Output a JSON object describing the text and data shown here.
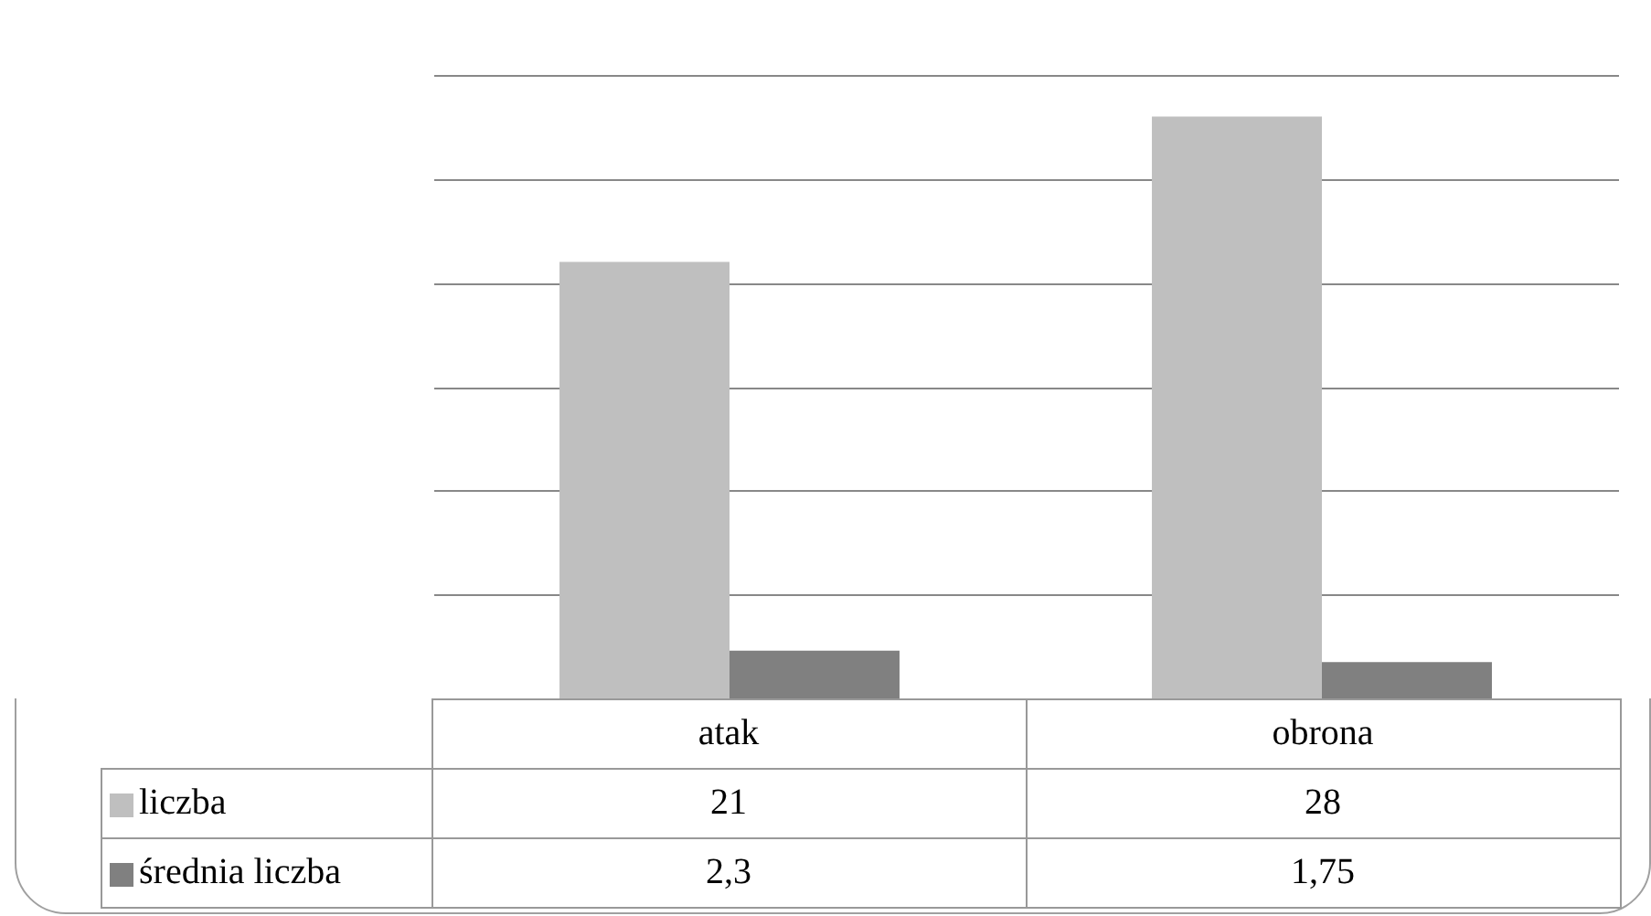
{
  "chart_data": {
    "type": "bar",
    "categories": [
      "atak",
      "obrona"
    ],
    "series": [
      {
        "name": "liczba",
        "color": "#bfbfbf",
        "values": [
          21,
          28
        ],
        "value_labels": [
          "21",
          "28"
        ]
      },
      {
        "name": "średnia liczba",
        "color": "#808080",
        "values": [
          2.3,
          1.75
        ],
        "value_labels": [
          "2,3",
          "1,75"
        ]
      }
    ],
    "ylim": [
      0,
      30
    ],
    "yticks": [
      {
        "value": 0,
        "label": null
      },
      {
        "value": 5,
        "label": null
      },
      {
        "value": 10,
        "label": null
      },
      {
        "value": 15,
        "label": null
      },
      {
        "value": 20,
        "label": null
      },
      {
        "value": 25,
        "label": null
      },
      {
        "value": 30,
        "label": null
      }
    ],
    "grid": "y",
    "legend": "bottom",
    "tick_labels": "x"
  }
}
